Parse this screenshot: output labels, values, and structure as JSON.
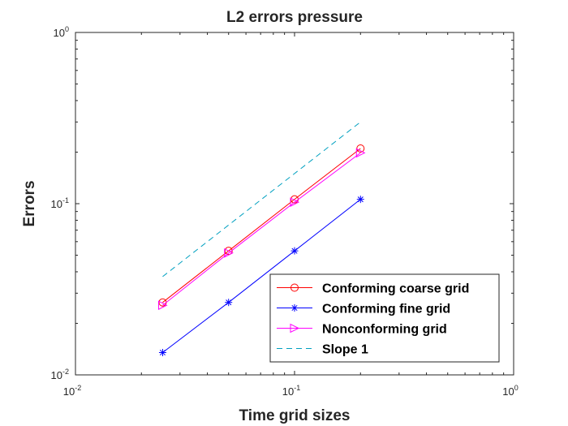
{
  "chart_data": {
    "type": "line",
    "title": "L2 errors pressure",
    "xlabel": "Time grid sizes",
    "ylabel": "Errors",
    "xscale": "log",
    "yscale": "log",
    "xlim": [
      0.01,
      1
    ],
    "ylim": [
      0.01,
      1
    ],
    "x_ticks": [
      {
        "base": "10",
        "exp": "-2",
        "value": 0.01
      },
      {
        "base": "10",
        "exp": "-1",
        "value": 0.1
      },
      {
        "base": "10",
        "exp": "0",
        "value": 1
      }
    ],
    "y_ticks": [
      {
        "base": "10",
        "exp": "-2",
        "value": 0.01
      },
      {
        "base": "10",
        "exp": "-1",
        "value": 0.1
      },
      {
        "base": "10",
        "exp": "0",
        "value": 1
      }
    ],
    "grid": false,
    "legend_position": "bottom-right",
    "x": [
      0.025,
      0.05,
      0.1,
      0.2
    ],
    "series": [
      {
        "name": "Conforming coarse grid",
        "color": "#ff0000",
        "marker": "circle",
        "dash": "solid",
        "values": [
          0.0265,
          0.053,
          0.106,
          0.21
        ]
      },
      {
        "name": "Conforming fine grid",
        "color": "#0000ff",
        "marker": "asterisk",
        "dash": "solid",
        "values": [
          0.0135,
          0.0265,
          0.053,
          0.106
        ]
      },
      {
        "name": "Nonconforming grid",
        "color": "#ff00ff",
        "marker": "triangle-right",
        "dash": "solid",
        "values": [
          0.0255,
          0.0515,
          0.102,
          0.198
        ]
      },
      {
        "name": "Slope 1",
        "color": "#00a0c0",
        "marker": "none",
        "dash": "dashed",
        "values": [
          0.0375,
          0.075,
          0.15,
          0.3
        ]
      }
    ]
  }
}
